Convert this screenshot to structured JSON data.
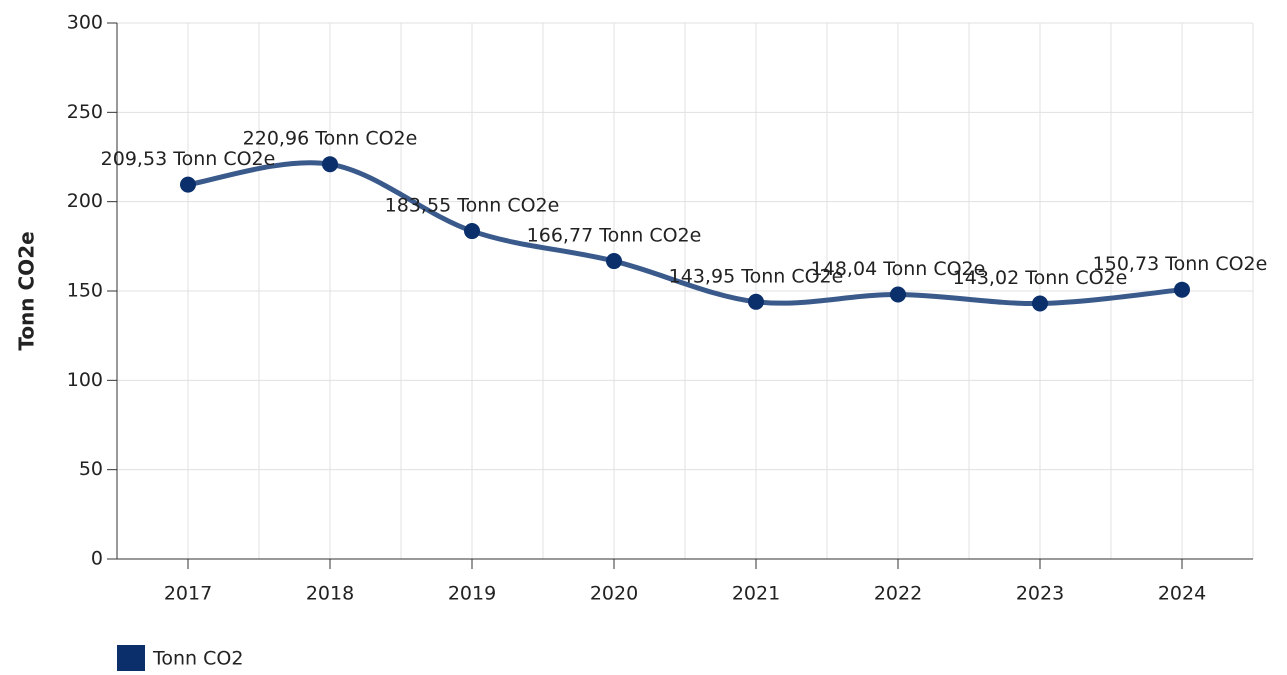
{
  "chart_data": {
    "type": "line",
    "y_label": "Tonn CO2e",
    "categories": [
      "2017",
      "2018",
      "2019",
      "2020",
      "2021",
      "2022",
      "2023",
      "2024"
    ],
    "series": [
      {
        "name": "Tonn CO2",
        "color": "#3a5a8c",
        "marker_color": "#0b2f6b",
        "values": [
          209.53,
          220.96,
          183.55,
          166.77,
          143.95,
          148.04,
          143.02,
          150.73
        ],
        "value_labels": [
          "209,53 Tonn CO2e",
          "220,96 Tonn CO2e",
          "183,55 Tonn CO2e",
          "166,77 Tonn CO2e",
          "143,95 Tonn CO2e",
          "148,04 Tonn CO2e",
          "143,02 Tonn CO2e",
          "150,73 Tonn CO2e"
        ]
      }
    ],
    "legend_color": "#0b2f6b",
    "ylim": [
      0,
      300
    ],
    "yticks": [
      0,
      50,
      100,
      150,
      200,
      250,
      300
    ],
    "grid": true
  }
}
